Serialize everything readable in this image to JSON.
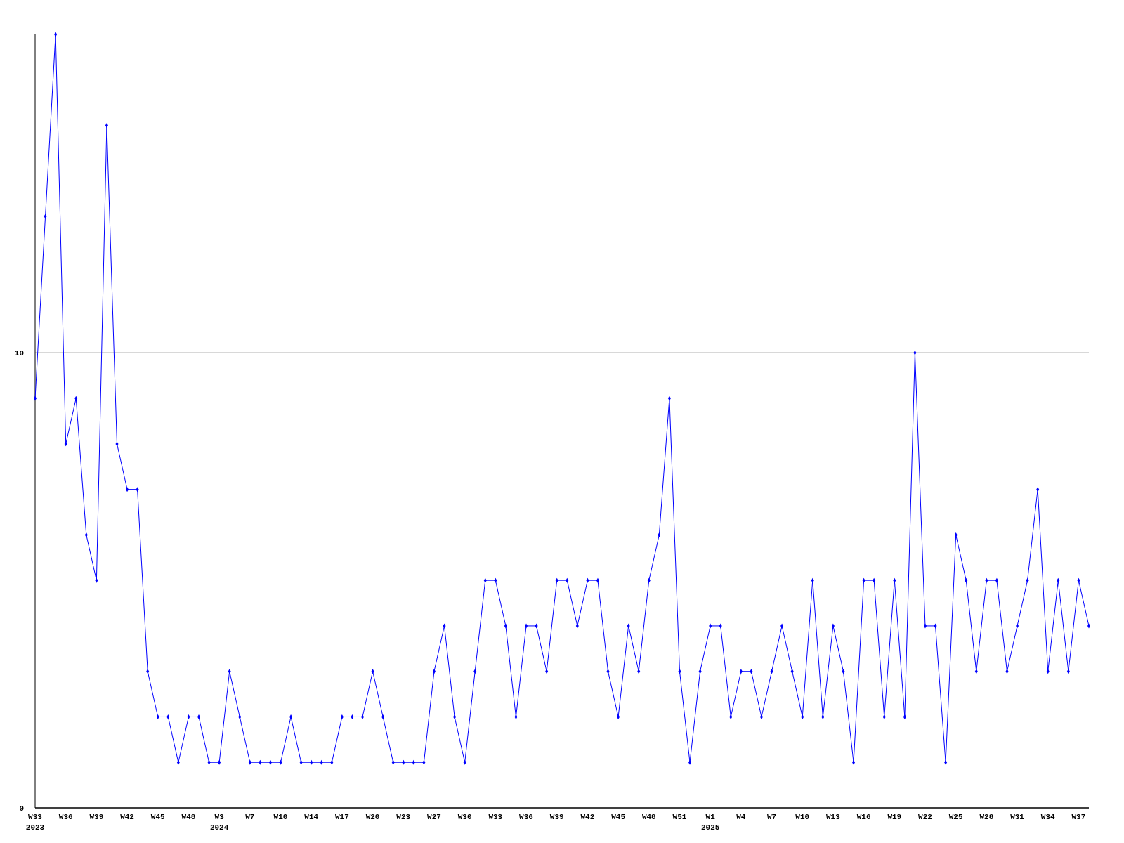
{
  "chart_data": {
    "type": "line",
    "categories": [
      "W33\n2023",
      null,
      null,
      "W36",
      null,
      null,
      "W39",
      null,
      null,
      "W42",
      null,
      null,
      "W45",
      null,
      null,
      "W48",
      null,
      null,
      "W3\n2024",
      null,
      null,
      "W7",
      null,
      null,
      "W10",
      null,
      null,
      "W14",
      null,
      null,
      "W17",
      null,
      null,
      "W20",
      null,
      null,
      "W23",
      null,
      null,
      "W27",
      null,
      null,
      "W30",
      null,
      null,
      "W33",
      null,
      null,
      "W36",
      null,
      null,
      "W39",
      null,
      null,
      "W42",
      null,
      null,
      "W45",
      null,
      null,
      "W48",
      null,
      null,
      "W51",
      null,
      null,
      "W1\n2025",
      null,
      null,
      "W4",
      null,
      null,
      "W7",
      null,
      null,
      "W10",
      null,
      null,
      "W13",
      null,
      null,
      "W16",
      null,
      null,
      "W19",
      null,
      null,
      "W22",
      null,
      null,
      "W25",
      null,
      null,
      "W28",
      null,
      null,
      "W31",
      null,
      null,
      "W34",
      null,
      null,
      "W37",
      null
    ],
    "series": [
      {
        "color": "#0000ff",
        "values": [
          9,
          13,
          17,
          8,
          9,
          6,
          5,
          15,
          8,
          7,
          7,
          3,
          2,
          2,
          1,
          2,
          2,
          1,
          1,
          3,
          2,
          1,
          1,
          1,
          1,
          2,
          1,
          1,
          1,
          1,
          2,
          2,
          2,
          3,
          2,
          1,
          1,
          1,
          1,
          3,
          4,
          2,
          1,
          3,
          5,
          5,
          4,
          2,
          4,
          4,
          3,
          5,
          5,
          4,
          5,
          5,
          3,
          2,
          4,
          3,
          5,
          6,
          9,
          3,
          1,
          3,
          4,
          4,
          2,
          3,
          3,
          2,
          3,
          4,
          3,
          2,
          5,
          2,
          4,
          3,
          1,
          5,
          5,
          2,
          5,
          2,
          10,
          4,
          4,
          1,
          6,
          5,
          3,
          5,
          5,
          3,
          4,
          5,
          7,
          3,
          5,
          3,
          5,
          4
        ]
      }
    ],
    "ylim": [
      0,
      17
    ],
    "yticks": [
      0,
      10
    ],
    "grid": "y",
    "marker": "diamond",
    "line_style": "solid"
  }
}
